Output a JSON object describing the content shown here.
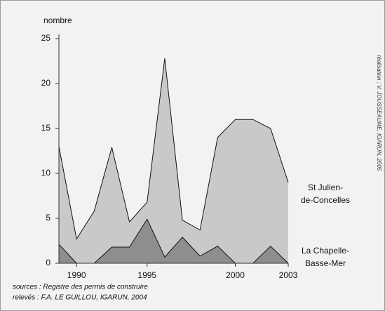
{
  "chart_data": {
    "type": "area",
    "y_label": "nombre",
    "categories": [
      null,
      "1990",
      null,
      null,
      null,
      "1995",
      null,
      null,
      null,
      null,
      "2000",
      null,
      null,
      "2003"
    ],
    "series": [
      {
        "name": [
          "St Julien-",
          "de-Concelles"
        ],
        "color": "#c9c9c9",
        "values": [
          13,
          2.7,
          5.8,
          12.9,
          4.6,
          6.8,
          22.8,
          4.8,
          3.7,
          14,
          16,
          16,
          15,
          9
        ]
      },
      {
        "name": [
          "La Chapelle-",
          "Basse-Mer"
        ],
        "color": "#8e8e8e",
        "values": [
          2.1,
          0,
          0,
          1.8,
          1.8,
          4.9,
          0.7,
          2.9,
          0.8,
          1.9,
          0,
          0,
          1.9,
          0
        ]
      }
    ],
    "ylim": [
      0,
      25
    ],
    "yticks": [
      0,
      5,
      10,
      15,
      20,
      25
    ],
    "sources": [
      "sources : Registre des permis de construire",
      "relevés : F.A. LE GUILLOU, IGARUN, 2004"
    ],
    "credit": "réalisation : V. JOUSSEAUME, IGARUN, 2005"
  }
}
